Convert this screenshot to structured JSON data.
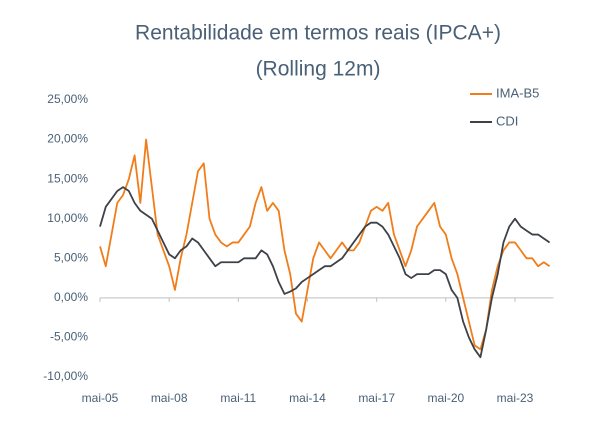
{
  "chart_data": {
    "type": "line",
    "title": "Rentabilidade em termos reais (IPCA+)",
    "subtitle": "(Rolling 12m)",
    "categories": [
      "mai-05",
      null,
      null,
      null,
      null,
      null,
      null,
      null,
      null,
      null,
      null,
      null,
      "mai-08",
      null,
      null,
      null,
      null,
      null,
      null,
      null,
      null,
      null,
      null,
      null,
      "mai-11",
      null,
      null,
      null,
      null,
      null,
      null,
      null,
      null,
      null,
      null,
      null,
      "mai-14",
      null,
      null,
      null,
      null,
      null,
      null,
      null,
      null,
      null,
      null,
      null,
      "mai-17",
      null,
      null,
      null,
      null,
      null,
      null,
      null,
      null,
      null,
      null,
      null,
      "mai-20",
      null,
      null,
      null,
      null,
      null,
      null,
      null,
      null,
      null,
      null,
      null,
      "mai-23",
      null,
      null,
      null,
      null,
      null,
      null
    ],
    "series": [
      {
        "name": "IMA-B5",
        "color": "#f07d1a",
        "values": [
          6.5,
          4,
          8,
          12,
          13,
          15,
          18,
          12,
          20,
          14,
          8,
          6,
          4,
          1,
          5,
          8,
          12,
          16,
          17,
          10,
          8,
          7,
          6.5,
          7,
          7,
          8,
          9,
          12,
          14,
          11,
          12,
          11,
          6,
          3,
          -2,
          -3,
          1,
          5,
          7,
          6,
          5,
          6,
          7,
          6,
          6,
          7,
          9,
          11,
          11.5,
          11,
          12,
          8,
          6,
          4,
          6,
          9,
          10,
          11,
          12,
          9,
          8,
          5,
          3,
          0,
          -3,
          -6,
          -6.5,
          -4,
          1,
          4,
          6,
          7,
          7,
          6,
          5,
          5,
          4,
          4.5,
          4
        ]
      },
      {
        "name": "CDI",
        "color": "#3d4148",
        "values": [
          9,
          11.5,
          12.5,
          13.5,
          14,
          13.5,
          12,
          11,
          10.5,
          10,
          8.5,
          7,
          5.5,
          5,
          6,
          6.5,
          7.5,
          7,
          6,
          5,
          4,
          4.5,
          4.5,
          4.5,
          4.5,
          5,
          5,
          5,
          6,
          5.5,
          4,
          2,
          0.5,
          0.8,
          1.2,
          2,
          2.5,
          3,
          3.5,
          4,
          4,
          4.5,
          5,
          6,
          7,
          8,
          9,
          9.5,
          9.5,
          9,
          8,
          6.5,
          5,
          3,
          2.5,
          3,
          3,
          3,
          3.5,
          3.5,
          3,
          1,
          0,
          -3,
          -5,
          -6.5,
          -7.5,
          -4,
          0,
          3,
          7,
          9,
          10,
          9,
          8.5,
          8,
          8,
          7.5,
          7
        ]
      }
    ],
    "ylim": [
      -10,
      25
    ],
    "yticks": [
      {
        "value": -10,
        "label": "-10,00%"
      },
      {
        "value": -5,
        "label": "-5,00%"
      },
      {
        "value": 0,
        "label": "0,00%"
      },
      {
        "value": 5,
        "label": "5,00%"
      },
      {
        "value": 10,
        "label": "10,00%"
      },
      {
        "value": 15,
        "label": "15,00%"
      },
      {
        "value": 20,
        "label": "20,00%"
      },
      {
        "value": 25,
        "label": "25,00%"
      }
    ],
    "grid": false,
    "legend": "upper right"
  }
}
